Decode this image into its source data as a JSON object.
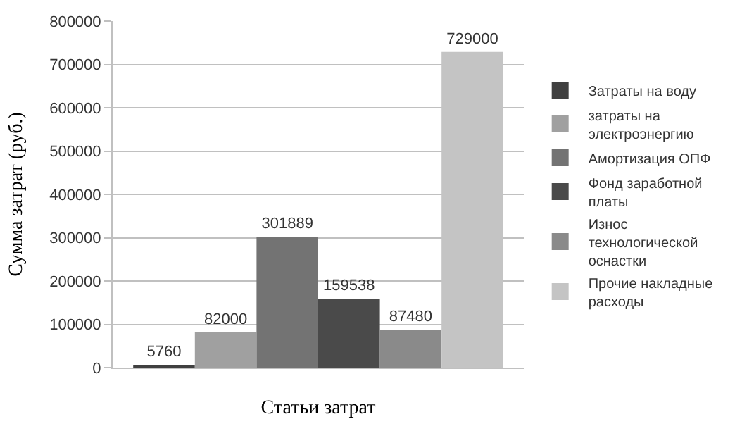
{
  "chart_data": {
    "type": "bar",
    "xlabel": "Статьи затрат",
    "ylabel": "Сумма затрат (руб.)",
    "categories": [
      null
    ],
    "series": [
      {
        "name": "Затраты на воду",
        "color": "#404040",
        "values": [
          5760
        ]
      },
      {
        "name": "затраты на электроэнергию",
        "color": "#a0a0a0",
        "values": [
          82000
        ]
      },
      {
        "name": "Амортизация ОПФ",
        "color": "#737373",
        "values": [
          301889
        ]
      },
      {
        "name": "Фонд заработной платы",
        "color": "#4a4a4a",
        "values": [
          159538
        ]
      },
      {
        "name": "Износ технологической оснастки",
        "color": "#8a8a8a",
        "values": [
          87480
        ]
      },
      {
        "name": "Прочие накладные расходы",
        "color": "#c4c4c4",
        "values": [
          729000
        ]
      }
    ],
    "ylim": [
      0,
      800000
    ],
    "yticks": [
      0,
      100000,
      200000,
      300000,
      400000,
      500000,
      600000,
      700000,
      800000
    ],
    "grid": "y",
    "legend": "right",
    "data_labels": true
  }
}
